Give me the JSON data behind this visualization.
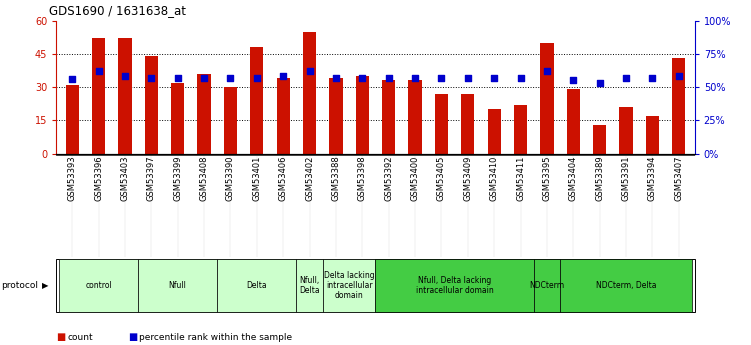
{
  "title": "GDS1690 / 1631638_at",
  "samples": [
    "GSM53393",
    "GSM53396",
    "GSM53403",
    "GSM53397",
    "GSM53399",
    "GSM53408",
    "GSM53390",
    "GSM53401",
    "GSM53406",
    "GSM53402",
    "GSM53388",
    "GSM53398",
    "GSM53392",
    "GSM53400",
    "GSM53405",
    "GSM53409",
    "GSM53410",
    "GSM53411",
    "GSM53395",
    "GSM53404",
    "GSM53389",
    "GSM53391",
    "GSM53394",
    "GSM53407"
  ],
  "counts": [
    31,
    52,
    52,
    44,
    32,
    36,
    30,
    48,
    34,
    55,
    34,
    35,
    33,
    33,
    27,
    27,
    20,
    22,
    50,
    29,
    13,
    21,
    17,
    43
  ],
  "percentiles": [
    56,
    62,
    58,
    57,
    57,
    57,
    57,
    57,
    58,
    62,
    57,
    57,
    57,
    57,
    57,
    57,
    57,
    57,
    62,
    55,
    53,
    57,
    57,
    58
  ],
  "bar_color": "#cc1100",
  "dot_color": "#0000cc",
  "ylim_left": [
    0,
    60
  ],
  "ylim_right": [
    0,
    100
  ],
  "yticks_left": [
    0,
    15,
    30,
    45,
    60
  ],
  "ytick_labels_left": [
    "0",
    "15",
    "30",
    "45",
    "60"
  ],
  "yticks_right": [
    0,
    25,
    50,
    75,
    100
  ],
  "ytick_labels_right": [
    "0%",
    "25%",
    "50%",
    "75%",
    "100%"
  ],
  "protocols": [
    {
      "label": "control",
      "indices": [
        0,
        1,
        2
      ],
      "color": "#ccffcc"
    },
    {
      "label": "Nfull",
      "indices": [
        3,
        4,
        5
      ],
      "color": "#ccffcc"
    },
    {
      "label": "Delta",
      "indices": [
        6,
        7,
        8
      ],
      "color": "#ccffcc"
    },
    {
      "label": "Nfull,\nDelta",
      "indices": [
        9
      ],
      "color": "#ccffcc"
    },
    {
      "label": "Delta lacking\nintracellular\ndomain",
      "indices": [
        10,
        11
      ],
      "color": "#ccffcc"
    },
    {
      "label": "Nfull, Delta lacking\nintracellular domain",
      "indices": [
        12,
        13,
        14,
        15,
        16,
        17
      ],
      "color": "#44cc44"
    },
    {
      "label": "NDCterm",
      "indices": [
        18
      ],
      "color": "#44cc44"
    },
    {
      "label": "NDCterm, Delta",
      "indices": [
        19,
        20,
        21,
        22,
        23
      ],
      "color": "#44cc44"
    }
  ],
  "left_axis_color": "#cc1100",
  "right_axis_color": "#0000cc",
  "bar_width": 0.5,
  "xlim": [
    -0.6,
    23.6
  ]
}
